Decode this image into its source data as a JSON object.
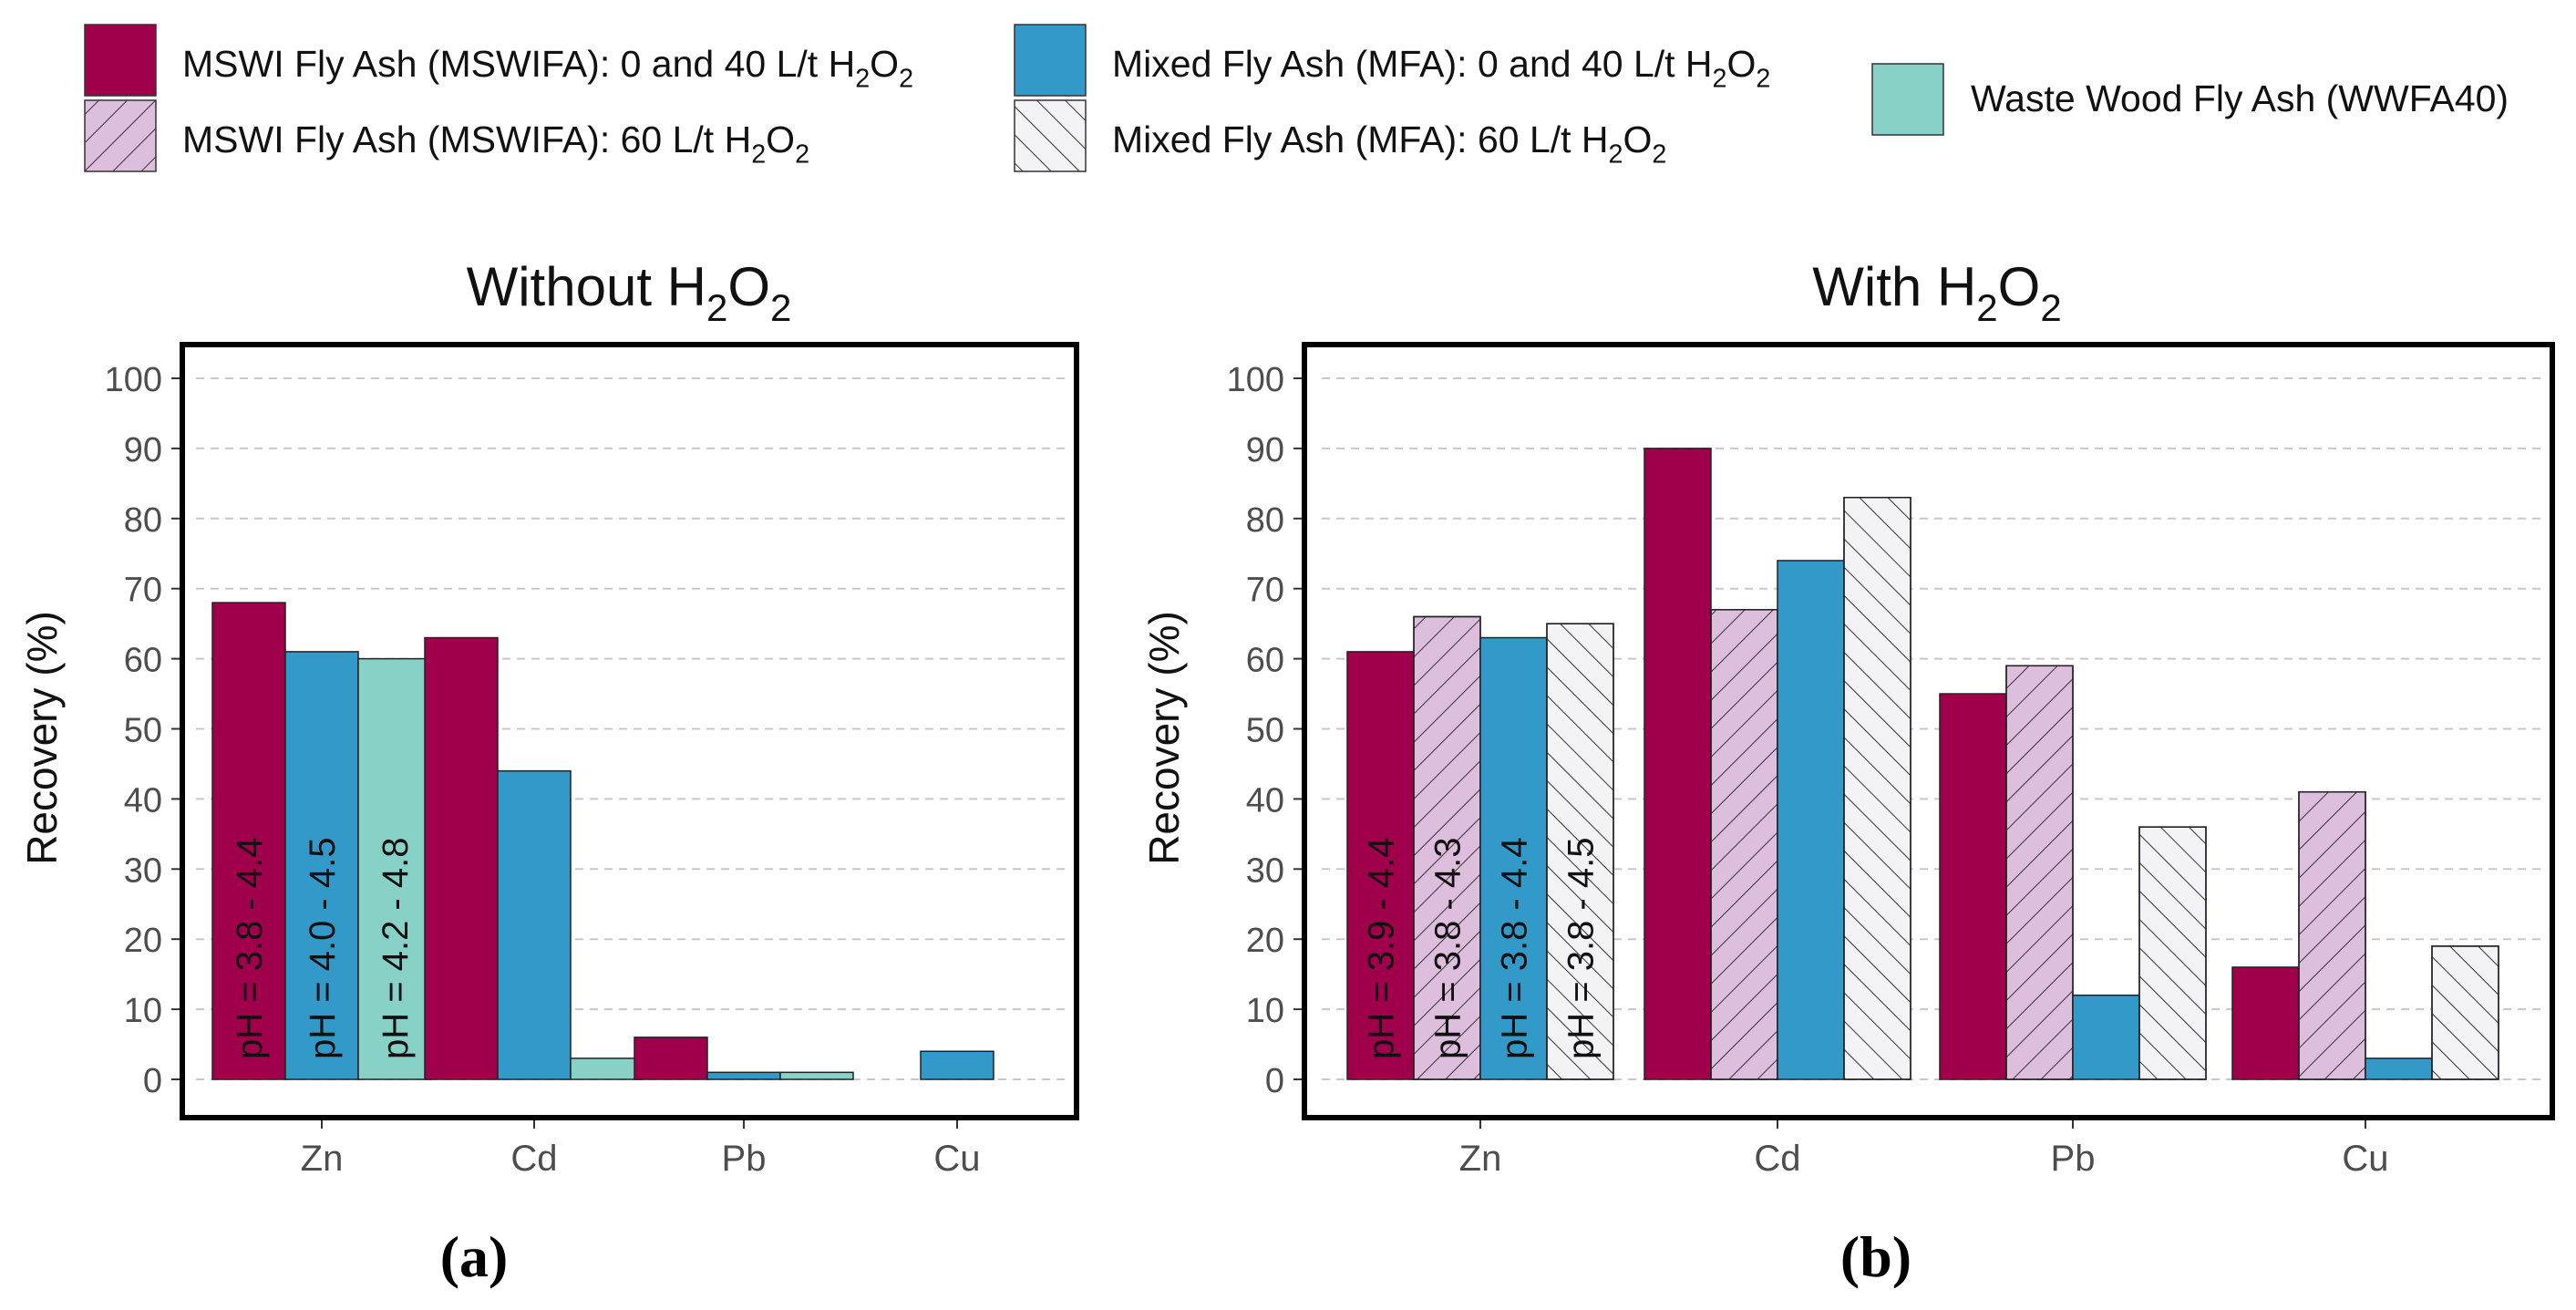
{
  "legend": {
    "items": [
      {
        "key": "mswifa_low",
        "prefix": "MSWI Fly Ash (MSWIFA):  0 and 40 L/t H",
        "h2o2": true
      },
      {
        "key": "mswifa_60",
        "prefix": "MSWI Fly Ash (MSWIFA):  60 L/t H",
        "h2o2": true
      },
      {
        "key": "mfa_low",
        "prefix": "Mixed Fly Ash (MFA):  0 and 40 L/t H",
        "h2o2": true
      },
      {
        "key": "mfa_60",
        "prefix": "Mixed Fly Ash (MFA):  60 L/t H",
        "h2o2": true
      },
      {
        "key": "wwfa40",
        "prefix": "Waste Wood Fly Ash (WWFA40)",
        "h2o2": false
      }
    ],
    "sub_2": "2",
    "o_char": "O"
  },
  "styles": {
    "mswifa_low": {
      "fill": "#A0004B",
      "hatch": "none"
    },
    "mswifa_60": {
      "fill": "#DDBEDD",
      "hatch": "forward"
    },
    "mfa_low": {
      "fill": "#3399C8",
      "hatch": "none"
    },
    "mfa_60": {
      "fill": "#F3F3F6",
      "hatch": "backward"
    },
    "wwfa40": {
      "fill": "#88D1C7",
      "hatch": "none"
    }
  },
  "captions": {
    "a": "(a)",
    "b": "(b)"
  },
  "chart_data": [
    {
      "type": "bar",
      "title_prefix": "Without H",
      "ylabel": "Recovery (%)",
      "xlabel": "",
      "ylim": [
        0,
        100
      ],
      "yticks": [
        0,
        10,
        20,
        30,
        40,
        50,
        60,
        70,
        80,
        90,
        100
      ],
      "grid": true,
      "categories": [
        "Zn",
        "Cd",
        "Pb",
        "Cu"
      ],
      "series": [
        {
          "key": "mswifa_low",
          "values": [
            68,
            63,
            6,
            0
          ]
        },
        {
          "key": "mfa_low",
          "values": [
            61,
            44,
            1,
            4
          ]
        },
        {
          "key": "wwfa40",
          "values": [
            60,
            3,
            1,
            0
          ]
        }
      ],
      "annotations": [
        {
          "category": "Zn",
          "series": "mswifa_low",
          "text": "pH = 3.8 - 4.4"
        },
        {
          "category": "Zn",
          "series": "mfa_low",
          "text": "pH = 4.0 - 4.5"
        },
        {
          "category": "Zn",
          "series": "wwfa40",
          "text": "pH = 4.2 - 4.8"
        }
      ]
    },
    {
      "type": "bar",
      "title_prefix": "With H",
      "ylabel": "Recovery (%)",
      "xlabel": "",
      "ylim": [
        0,
        100
      ],
      "yticks": [
        0,
        10,
        20,
        30,
        40,
        50,
        60,
        70,
        80,
        90,
        100
      ],
      "grid": true,
      "categories": [
        "Zn",
        "Cd",
        "Pb",
        "Cu"
      ],
      "series": [
        {
          "key": "mswifa_low",
          "values": [
            61,
            90,
            55,
            16
          ]
        },
        {
          "key": "mswifa_60",
          "values": [
            66,
            67,
            59,
            41
          ]
        },
        {
          "key": "mfa_low",
          "values": [
            63,
            74,
            12,
            3
          ]
        },
        {
          "key": "mfa_60",
          "values": [
            65,
            83,
            36,
            19
          ]
        }
      ],
      "annotations": [
        {
          "category": "Zn",
          "series": "mswifa_low",
          "text": "pH = 3.9 - 4.4"
        },
        {
          "category": "Zn",
          "series": "mswifa_60",
          "text": "pH = 3.8 - 4.3"
        },
        {
          "category": "Zn",
          "series": "mfa_low",
          "text": "pH = 3.8 - 4.4"
        },
        {
          "category": "Zn",
          "series": "mfa_60",
          "text": "pH = 3.8 - 4.5"
        }
      ]
    }
  ]
}
